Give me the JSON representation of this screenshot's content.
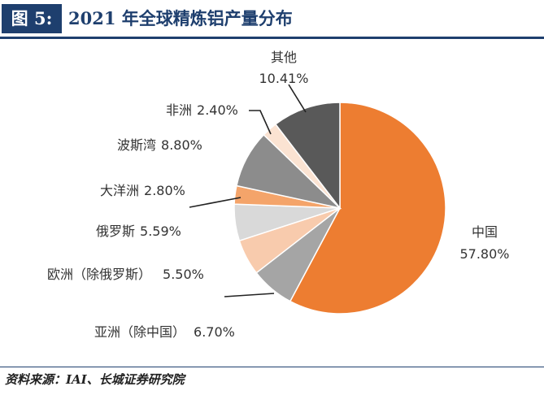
{
  "header": {
    "figure_label": "图 5:",
    "title": "2021 年全球精炼铝产量分布"
  },
  "source": "资料来源：IAI、长城证券研究院",
  "chart_data": {
    "type": "pie",
    "title": "2021 年全球精炼铝产量分布",
    "start_angle_deg": 0,
    "direction": "clockwise",
    "slices": [
      {
        "name": "中国",
        "value": 57.8,
        "label": "57.80%",
        "color": "#ed7d31"
      },
      {
        "name": "亚洲（除中国）",
        "value": 6.7,
        "label": "6.70%",
        "color": "#a5a5a5"
      },
      {
        "name": "欧洲（除俄罗斯）",
        "value": 5.5,
        "label": "5.50%",
        "color": "#f8cbad"
      },
      {
        "name": "俄罗斯",
        "value": 5.59,
        "label": "5.59%",
        "color": "#d9d9d9"
      },
      {
        "name": "大洋洲",
        "value": 2.8,
        "label": "2.80%",
        "color": "#f4a46a"
      },
      {
        "name": "波斯湾",
        "value": 8.8,
        "label": "8.80%",
        "color": "#8c8c8c"
      },
      {
        "name": "非洲",
        "value": 2.4,
        "label": "2.40%",
        "color": "#fbe3d2"
      },
      {
        "name": "其他",
        "value": 10.41,
        "label": "10.41%",
        "color": "#595959"
      }
    ]
  }
}
